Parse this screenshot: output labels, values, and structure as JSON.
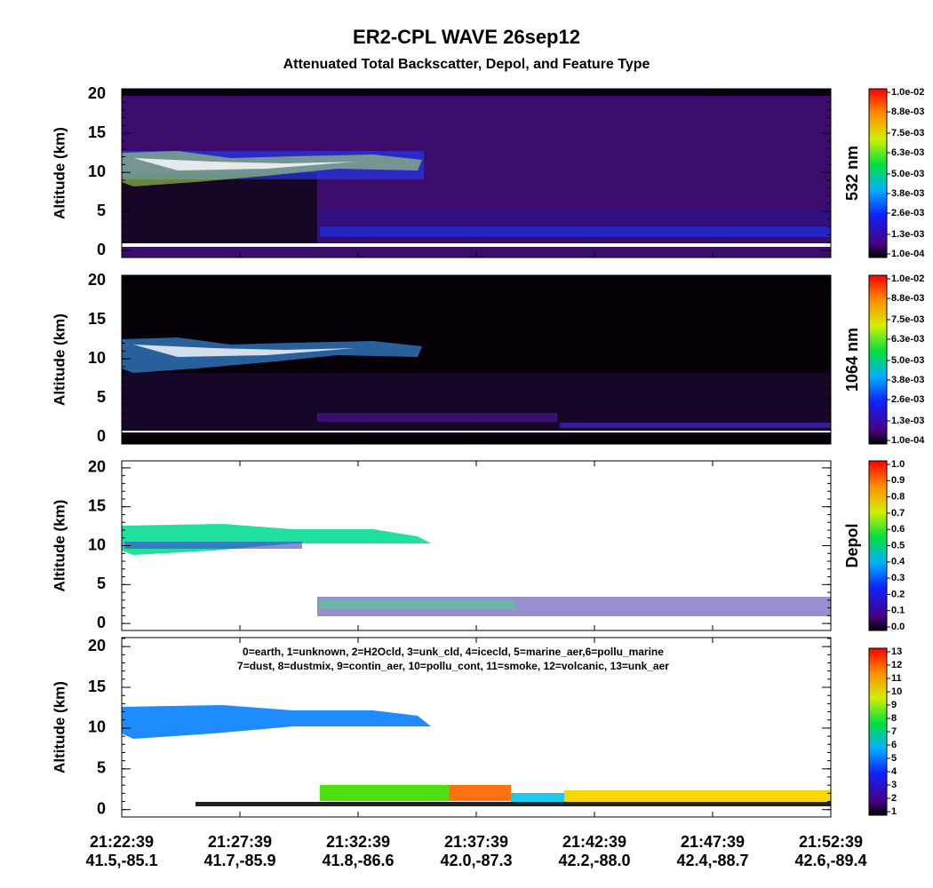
{
  "chart_data": [
    {
      "type": "heatmap",
      "title": "ER2-CPL WAVE 26sep12",
      "subtitle": "Attenuated Total Backscatter, Depol, and Feature Type",
      "y_label": "Altitude (km)",
      "ylim": [
        -0.9,
        20.7
      ],
      "yticks": [
        0,
        5,
        10,
        15,
        20
      ],
      "colorbar_label": "532 nm",
      "colorbar_lim": [
        0.0001,
        0.01
      ],
      "colorbar_ticks": [
        {
          "value": 0.0001,
          "label": "1.0e-04"
        },
        {
          "value": 0.0013,
          "label": "1.3e-03"
        },
        {
          "value": 0.0026,
          "label": "2.6e-03"
        },
        {
          "value": 0.0038,
          "label": "3.8e-03"
        },
        {
          "value": 0.005,
          "label": "5.0e-03"
        },
        {
          "value": 0.0063,
          "label": "6.3e-03"
        },
        {
          "value": 0.0075,
          "label": "7.5e-03"
        },
        {
          "value": 0.0088,
          "label": "8.8e-03"
        },
        {
          "value": 0.01,
          "label": "1.0e-02"
        }
      ]
    },
    {
      "type": "heatmap",
      "y_label": "Altitude (km)",
      "ylim": [
        -0.9,
        20.7
      ],
      "yticks": [
        0,
        5,
        10,
        15,
        20
      ],
      "colorbar_label": "1064 nm",
      "colorbar_lim": [
        0.0001,
        0.01
      ],
      "colorbar_ticks": [
        {
          "value": 0.0001,
          "label": "1.0e-04"
        },
        {
          "value": 0.0013,
          "label": "1.3e-03"
        },
        {
          "value": 0.0026,
          "label": "2.6e-03"
        },
        {
          "value": 0.0038,
          "label": "3.8e-03"
        },
        {
          "value": 0.005,
          "label": "5.0e-03"
        },
        {
          "value": 0.0063,
          "label": "6.3e-03"
        },
        {
          "value": 0.0075,
          "label": "7.5e-03"
        },
        {
          "value": 0.0088,
          "label": "8.8e-03"
        },
        {
          "value": 0.01,
          "label": "1.0e-02"
        }
      ]
    },
    {
      "type": "heatmap",
      "y_label": "Altitude (km)",
      "ylim": [
        -0.9,
        20.9
      ],
      "yticks": [
        0,
        5,
        10,
        15,
        20
      ],
      "colorbar_label": "Depol",
      "colorbar_lim": [
        0,
        1
      ],
      "colorbar_ticks": [
        {
          "value": 0,
          "label": "0.0"
        },
        {
          "value": 0.1,
          "label": "0.1"
        },
        {
          "value": 0.2,
          "label": "0.2"
        },
        {
          "value": 0.3,
          "label": "0.3"
        },
        {
          "value": 0.4,
          "label": "0.4"
        },
        {
          "value": 0.5,
          "label": "0.5"
        },
        {
          "value": 0.6,
          "label": "0.6"
        },
        {
          "value": 0.7,
          "label": "0.7"
        },
        {
          "value": 0.8,
          "label": "0.8"
        },
        {
          "value": 0.9,
          "label": "0.9"
        },
        {
          "value": 1,
          "label": "1.0"
        }
      ]
    },
    {
      "type": "heatmap",
      "y_label": "Altitude (km)",
      "ylim": [
        -0.9,
        21.1
      ],
      "yticks": [
        0,
        5,
        10,
        15,
        20
      ],
      "legend_lines": [
        "0=earth, 1=unknown, 2=H2Ocld, 3=unk_cld, 4=icecld, 5=marine_aer,6=pollu_marine",
        "7=dust, 8=dustmix, 9=contin_aer, 10=pollu_cont, 11=smoke, 12=volcanic, 13=unk_aer"
      ],
      "colorbar_lim": [
        1,
        13
      ],
      "colorbar_ticks": [
        1,
        2,
        3,
        4,
        5,
        6,
        7,
        8,
        9,
        10,
        11,
        12,
        13
      ],
      "x_tick_labels": [
        [
          "21:22:39",
          "41.5,-85.1"
        ],
        [
          "21:27:39",
          "41.7,-85.9"
        ],
        [
          "21:32:39",
          "41.8,-86.6"
        ],
        [
          "21:37:39",
          "42.0,-87.3"
        ],
        [
          "21:42:39",
          "42.2,-88.0"
        ],
        [
          "21:47:39",
          "42.4,-88.7"
        ],
        [
          "21:52:39",
          "42.6,-89.4"
        ]
      ]
    }
  ]
}
